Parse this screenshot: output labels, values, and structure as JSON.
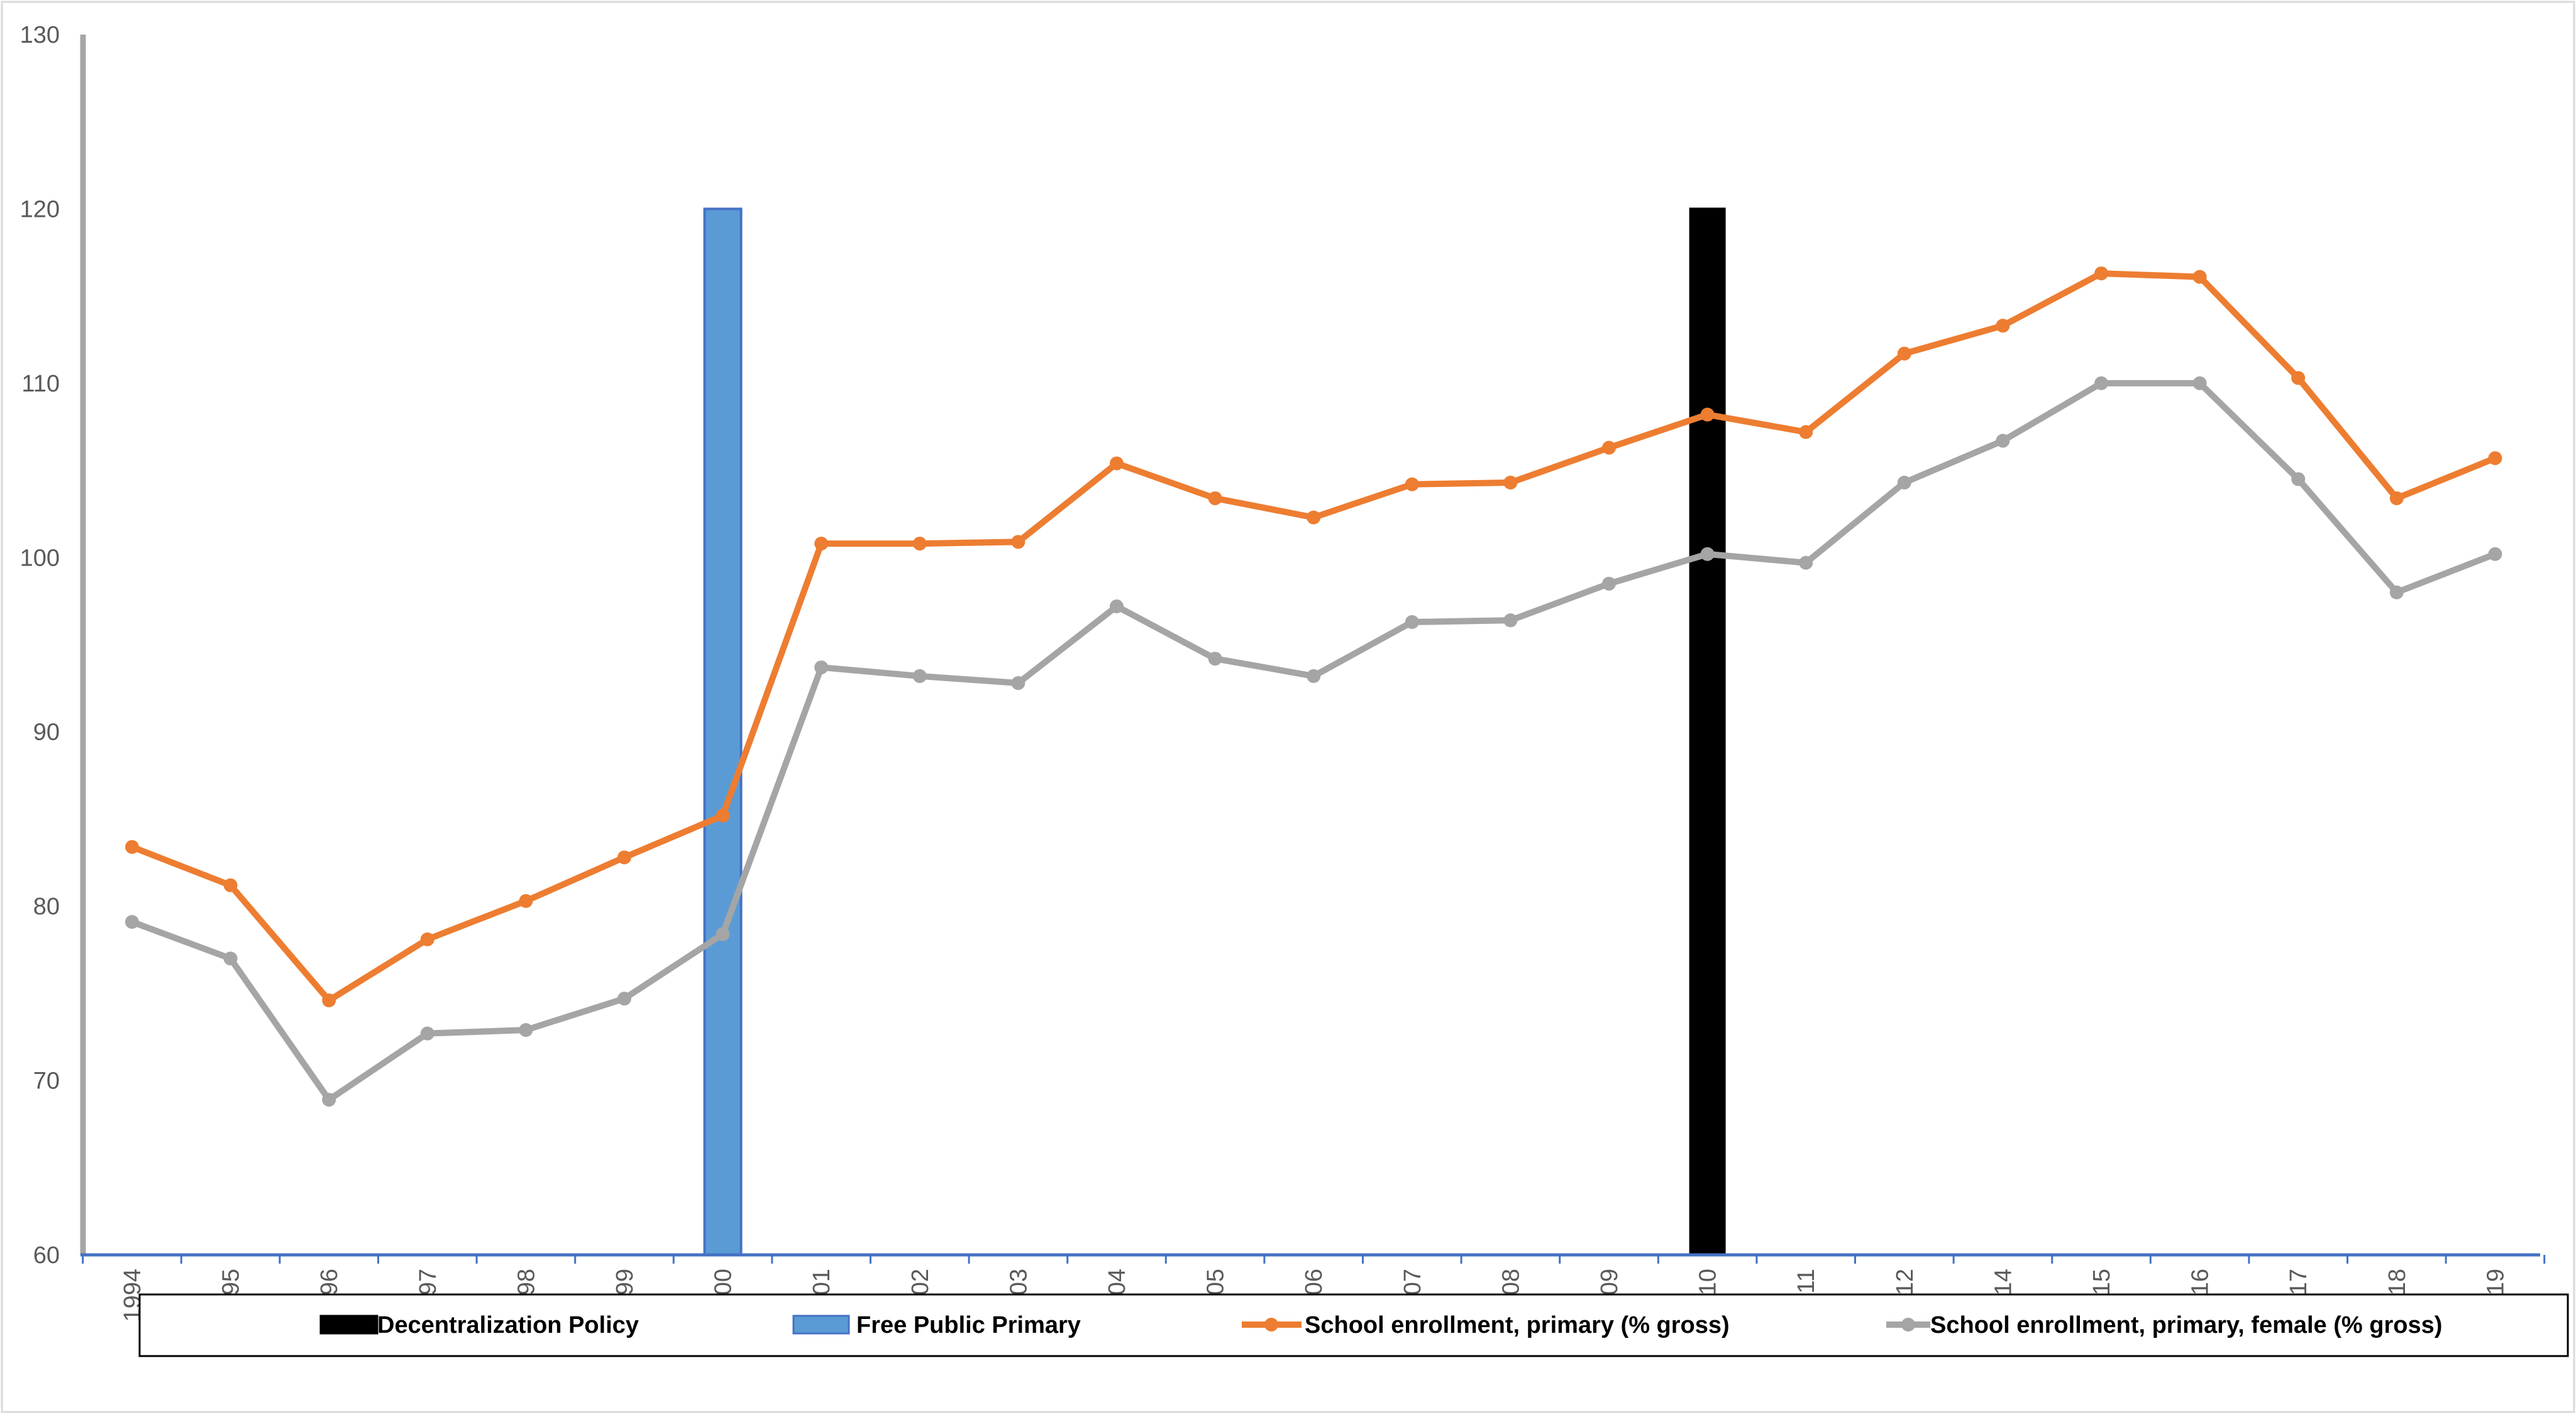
{
  "chart_data": {
    "type": "line",
    "categories": [
      "1994",
      "1995",
      "1996",
      "1997",
      "1998",
      "1999",
      "2000",
      "2001",
      "2002",
      "2003",
      "2004",
      "2005",
      "2006",
      "2007",
      "2008",
      "2009",
      "2010",
      "2011",
      "2012",
      "2014",
      "2015",
      "2016",
      "2017",
      "2018",
      "2019"
    ],
    "ylim": [
      60,
      130
    ],
    "yticks": [
      "60",
      "70",
      "80",
      "90",
      "100",
      "110",
      "120",
      "130"
    ],
    "grid": false,
    "legend_position": "bottom",
    "bars": [
      {
        "name": "Decentralization Policy",
        "category": "2010",
        "value": 120,
        "color": "#000000"
      },
      {
        "name": "Free Public Primary",
        "category": "2000",
        "value": 120,
        "color": "#5b9bd5"
      }
    ],
    "series": [
      {
        "name": "School enrollment, primary (% gross)",
        "color": "#ed7d31",
        "values": [
          83.4,
          81.2,
          74.6,
          78.1,
          80.3,
          82.8,
          85.2,
          100.8,
          100.8,
          100.9,
          105.4,
          103.4,
          102.3,
          104.2,
          104.3,
          106.3,
          108.2,
          107.2,
          111.7,
          113.3,
          116.3,
          116.1,
          110.3,
          103.4,
          105.7
        ]
      },
      {
        "name": "School enrollment, primary, female (% gross)",
        "color": "#a5a5a5",
        "values": [
          79.1,
          77.0,
          68.9,
          72.7,
          72.9,
          74.7,
          78.4,
          93.7,
          93.2,
          92.8,
          97.2,
          94.2,
          93.2,
          96.3,
          96.4,
          98.5,
          100.2,
          99.7,
          104.3,
          106.7,
          110.0,
          110.0,
          104.5,
          98.0,
          100.2
        ]
      }
    ],
    "legend": [
      {
        "label": "Decentralization Policy",
        "kind": "bar",
        "color": "#000000"
      },
      {
        "label": "Free Public Primary",
        "kind": "bar",
        "color": "#5b9bd5"
      },
      {
        "label": "School enrollment, primary (% gross)",
        "kind": "line",
        "color": "#ed7d31"
      },
      {
        "label": "School enrollment, primary, female (% gross)",
        "kind": "line",
        "color": "#a5a5a5"
      }
    ]
  }
}
